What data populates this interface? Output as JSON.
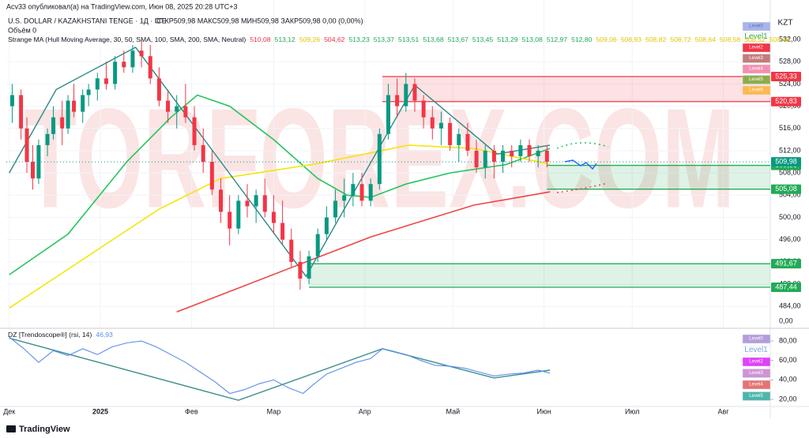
{
  "header": {
    "publisher": "Acv33 опубликовал(а) на TradingView.com, Июн 08, 2025 20:28 UTC+3",
    "symbol": "U.S. DOLLAR / KAZAKHSTANI TENGE · 1Д · ICE",
    "ohlc": "ОТКР509,98 МАКС509,98 МИН509,98 ЗАКР509,98 0,00 (0,00%)",
    "volume": "Объём 0",
    "indicator": "Strange MA (Hull Moving Average, 30, 50, SMA, 100, SMA, 200, SMA, Neutral)",
    "indicator_values": [
      {
        "label": "510,08",
        "color": "#f23645"
      },
      {
        "label": "513,12",
        "color": "#22ab57"
      },
      {
        "label": "509,26",
        "color": "#e6c800"
      },
      {
        "label": "504,62",
        "color": "#f23645"
      },
      {
        "label": "513,23",
        "color": "#22ab57"
      },
      {
        "label": "513,37",
        "color": "#22ab57"
      },
      {
        "label": "513,51",
        "color": "#22ab57"
      },
      {
        "label": "513,68",
        "color": "#22ab57"
      },
      {
        "label": "513,67",
        "color": "#22ab57"
      },
      {
        "label": "513,45",
        "color": "#22ab57"
      },
      {
        "label": "513,29",
        "color": "#22ab57"
      },
      {
        "label": "513,08",
        "color": "#22ab57"
      },
      {
        "label": "512,97",
        "color": "#22ab57"
      },
      {
        "label": "512,80",
        "color": "#22ab57"
      },
      {
        "label": "509,06",
        "color": "#e6c800"
      },
      {
        "label": "508,93",
        "color": "#e6c800"
      },
      {
        "label": "508,82",
        "color": "#e6c800"
      },
      {
        "label": "508,72",
        "color": "#e6c800"
      },
      {
        "label": "508,64",
        "color": "#e6c800"
      },
      {
        "label": "508,58",
        "color": "#e6c800"
      },
      {
        "label": "508,52",
        "color": "#e6c800"
      },
      {
        "label": "508,44",
        "color": "#e6c800"
      }
    ]
  },
  "watermark": "TORFOREX.COM",
  "currency": "KZT",
  "footer": "TradingView",
  "chart_data": [
    {
      "type": "candlestick",
      "x": [
        1,
        4,
        6,
        8,
        10,
        13,
        15,
        18,
        20,
        22,
        25,
        27,
        30,
        33,
        36,
        39,
        42,
        45,
        48,
        51,
        54,
        57,
        60,
        63,
        66,
        69,
        72,
        75,
        78,
        81,
        84,
        87,
        90,
        93,
        96,
        99,
        102,
        105,
        108,
        111,
        114,
        117,
        120,
        123,
        126,
        129,
        132,
        135,
        138,
        141,
        144,
        147,
        150,
        153,
        156,
        159,
        162,
        165,
        168,
        171,
        174,
        177,
        180,
        183
      ],
      "open": [
        520,
        522,
        516,
        510,
        507,
        513,
        515,
        518,
        516,
        521,
        519,
        522,
        523,
        525,
        524,
        528,
        527,
        530,
        529,
        525,
        521,
        519,
        520,
        518,
        513,
        510,
        505,
        501,
        498,
        503,
        502,
        504,
        501,
        499,
        496,
        492,
        489,
        493,
        497,
        500,
        503,
        504,
        506,
        503,
        506,
        515,
        522,
        520,
        524,
        521,
        518,
        516,
        517,
        513,
        515,
        512,
        509,
        512,
        510,
        512,
        511,
        513,
        511,
        512
      ],
      "high": [
        524,
        523,
        518,
        513,
        514,
        516,
        520,
        521,
        522,
        524,
        523,
        524,
        526,
        528,
        529,
        530,
        531,
        532,
        531,
        527,
        523,
        522,
        524,
        520,
        516,
        512,
        507,
        504,
        504,
        506,
        505,
        507,
        504,
        503,
        498,
        494,
        494,
        498,
        502,
        505,
        507,
        508,
        508,
        507,
        516,
        524,
        525,
        526,
        525,
        522,
        520,
        519,
        518,
        516,
        517,
        514,
        513,
        513,
        513,
        513,
        514,
        514,
        513,
        513
      ],
      "low": [
        517,
        514,
        508,
        505,
        506,
        511,
        514,
        513,
        515,
        518,
        517,
        520,
        521,
        523,
        523,
        526,
        526,
        527,
        524,
        520,
        517,
        516,
        517,
        512,
        508,
        504,
        499,
        495,
        497,
        500,
        499,
        500,
        497,
        495,
        491,
        487,
        488,
        492,
        496,
        499,
        500,
        502,
        502,
        502,
        505,
        514,
        518,
        519,
        519,
        516,
        514,
        513,
        512,
        510,
        511,
        508,
        507,
        507,
        508,
        509,
        510,
        510,
        509,
        509
      ],
      "close": [
        522,
        516,
        510,
        507,
        513,
        515,
        518,
        516,
        521,
        519,
        522,
        523,
        525,
        524,
        528,
        527,
        530,
        529,
        525,
        521,
        519,
        520,
        518,
        513,
        510,
        505,
        501,
        498,
        503,
        502,
        504,
        501,
        499,
        496,
        492,
        489,
        493,
        497,
        500,
        503,
        504,
        506,
        503,
        506,
        515,
        522,
        520,
        524,
        521,
        518,
        516,
        517,
        513,
        515,
        512,
        509,
        512,
        510,
        512,
        511,
        513,
        511,
        512,
        510
      ],
      "up_color": "#089981",
      "down_color": "#f23645",
      "xlim": [
        -1,
        259
      ],
      "ylim": [
        480.2,
        539.1
      ],
      "xticks": [
        {
          "value": 0,
          "label": "Дек"
        },
        {
          "value": 31,
          "label": "2025"
        },
        {
          "value": 62,
          "label": "Фев"
        },
        {
          "value": 90,
          "label": "Мар"
        },
        {
          "value": 121,
          "label": "Апр"
        },
        {
          "value": 151,
          "label": "Май"
        },
        {
          "value": 182,
          "label": "Июн"
        },
        {
          "value": 212,
          "label": "Июл"
        },
        {
          "value": 243,
          "label": "Авг"
        }
      ],
      "yticks": [
        {
          "value": 484,
          "label": "484,00"
        },
        {
          "value": 488,
          "label": "488,00"
        },
        {
          "value": 492,
          "label": "492,00"
        },
        {
          "value": 496,
          "label": "496,00"
        },
        {
          "value": 500,
          "label": "500,00"
        },
        {
          "value": 504,
          "label": "504,00"
        },
        {
          "value": 508,
          "label": "508,00"
        },
        {
          "value": 512,
          "label": "512,00"
        },
        {
          "value": 516,
          "label": "516,00"
        },
        {
          "value": 520,
          "label": "520,00"
        },
        {
          "value": 524,
          "label": "524,00"
        },
        {
          "value": 528,
          "label": "528,00"
        },
        {
          "value": 532,
          "label": "532,00"
        }
      ],
      "grid": true,
      "lines": [
        {
          "color": "#22c55e",
          "width": 1.6,
          "x": [
            0,
            20,
            40,
            55,
            64,
            75,
            90,
            105,
            115,
            123,
            135,
            150,
            169,
            184
          ],
          "values": [
            489.7,
            497,
            510,
            518,
            522,
            520,
            514,
            507,
            504,
            503.6,
            506,
            508,
            509.5,
            512.4
          ]
        },
        {
          "color": "#f5e50a",
          "width": 1.6,
          "x": [
            0,
            51,
            72,
            104,
            136,
            158,
            184
          ],
          "values": [
            483.7,
            501.5,
            507,
            509.6,
            513,
            512.4,
            509.6
          ]
        },
        {
          "color": "#ef4444",
          "width": 1.6,
          "x": [
            57,
            102,
            123,
            158,
            184
          ],
          "values": [
            483,
            492.2,
            496.5,
            502.2,
            504.6
          ]
        },
        {
          "color": "#2a8a86",
          "width": 1.4,
          "x": [
            0,
            16,
            43,
            101,
            138,
            166,
            184
          ],
          "values": [
            508,
            523,
            530.6,
            489.4,
            523.8,
            511.4,
            513
          ]
        }
      ],
      "zones": [
        {
          "x_start": 127,
          "color": "#f23645",
          "range": [
            {
              "value": 520.83,
              "label": "520,83"
            },
            {
              "value": 525.33,
              "label": "525,33"
            }
          ]
        },
        {
          "x_start": 183,
          "color": "#22ab57",
          "range": [
            {
              "value": 505.08,
              "label": "505,08"
            },
            {
              "value": 509.36,
              "label": "509,36"
            }
          ]
        },
        {
          "x_start": 102,
          "color": "#22ab57",
          "range": [
            {
              "value": 487.44,
              "label": "487,44"
            },
            {
              "value": 491.67,
              "label": "491,67"
            }
          ]
        }
      ],
      "last_price": {
        "value": 509.98,
        "label": "509,98",
        "color": "#089981"
      },
      "volume_axis_label": "0,00",
      "level_legend": [
        {
          "label": "Level0",
          "color": "#aab4e8",
          "text_color": "#5c6bc0"
        },
        {
          "label": "Level1",
          "color": "#ffffff",
          "text_color": "#22ab57"
        },
        {
          "label": "Level2",
          "color": "#f23645",
          "text_color": "#ffffff"
        },
        {
          "label": "Level3",
          "color": "#c27c7c",
          "text_color": "#ffffff"
        },
        {
          "label": "Level4",
          "color": "#f48fb1",
          "text_color": "#ffffff"
        },
        {
          "label": "Level5",
          "color": "#8bae4a",
          "text_color": "#ffffff"
        },
        {
          "label": "Level6",
          "color": "#ffb74d",
          "text_color": "#ffffff"
        }
      ]
    },
    {
      "type": "line",
      "title": "DZ [Trendoscope®] (rsi, 14)",
      "last_value": {
        "value": 46.93,
        "label": "46,93"
      },
      "color": "#5b8def",
      "x": [
        0,
        5,
        10,
        15,
        20,
        25,
        30,
        35,
        40,
        45,
        50,
        55,
        60,
        65,
        70,
        75,
        80,
        85,
        90,
        95,
        100,
        103,
        108,
        113,
        118,
        123,
        127,
        130,
        135,
        140,
        145,
        150,
        155,
        160,
        165,
        170,
        175,
        180,
        184
      ],
      "values": [
        84,
        72,
        58,
        70,
        65,
        72,
        66,
        74,
        78,
        80,
        74,
        66,
        58,
        48,
        38,
        26,
        30,
        36,
        40,
        32,
        26,
        34,
        46,
        52,
        58,
        62,
        72,
        70,
        66,
        60,
        55,
        54,
        52,
        48,
        44,
        46,
        47,
        50,
        46.93
      ],
      "zigzag": {
        "color": "#3d8f8a",
        "x": [
          0,
          78,
          127,
          165,
          184
        ],
        "values": [
          83,
          19,
          72,
          42,
          50
        ]
      },
      "ylim": [
        12.7,
        89.8
      ],
      "yticks": [
        {
          "value": 20,
          "label": "20,00"
        },
        {
          "value": 40,
          "label": "40,00"
        },
        {
          "value": 60,
          "label": "60,00"
        },
        {
          "value": 80,
          "label": "80,00"
        }
      ],
      "level_legend": [
        {
          "label": "Level0",
          "color": "#b39ddb",
          "text_color": "#ffffff"
        },
        {
          "label": "Level1",
          "color": "#ffffff",
          "text_color": "#7aa7d9"
        },
        {
          "label": "Level2",
          "color": "#e040fb",
          "text_color": "#ffffff"
        },
        {
          "label": "Level3",
          "color": "#ce93d8",
          "text_color": "#ffffff"
        },
        {
          "label": "Level4",
          "color": "#e57373",
          "text_color": "#ffffff"
        },
        {
          "label": "Level5",
          "color": "#4db6ac",
          "text_color": "#ffffff"
        }
      ]
    }
  ]
}
